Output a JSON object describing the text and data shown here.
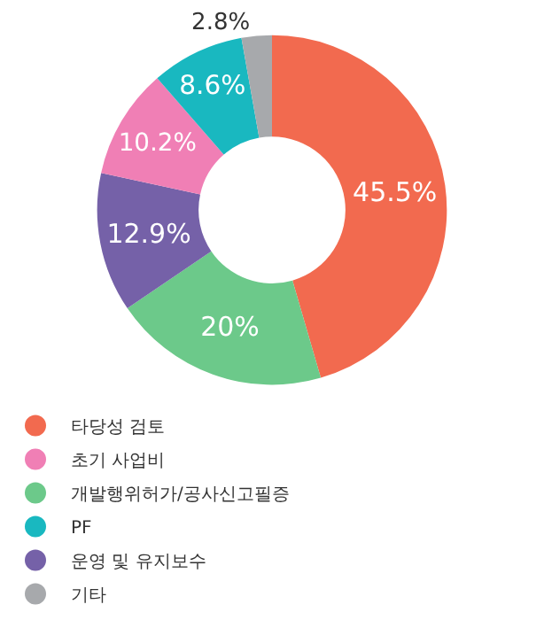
{
  "chart_data": {
    "type": "donut",
    "categories": [
      "타당성 검토",
      "개발행위허가/공사신고필증",
      "운영 및 유지보수",
      "초기 사업비",
      "PF",
      "기타"
    ],
    "values": [
      45.5,
      20,
      12.9,
      10.2,
      8.6,
      2.8
    ],
    "colors": [
      "#f26a4f",
      "#6cc98a",
      "#7561a8",
      "#f07fb5",
      "#19b8c0",
      "#a7a9ac"
    ],
    "value_labels": [
      "45.5%",
      "20%",
      "12.9%",
      "10.2%",
      "8.6%",
      "2.8%"
    ],
    "legend": "bottom"
  }
}
